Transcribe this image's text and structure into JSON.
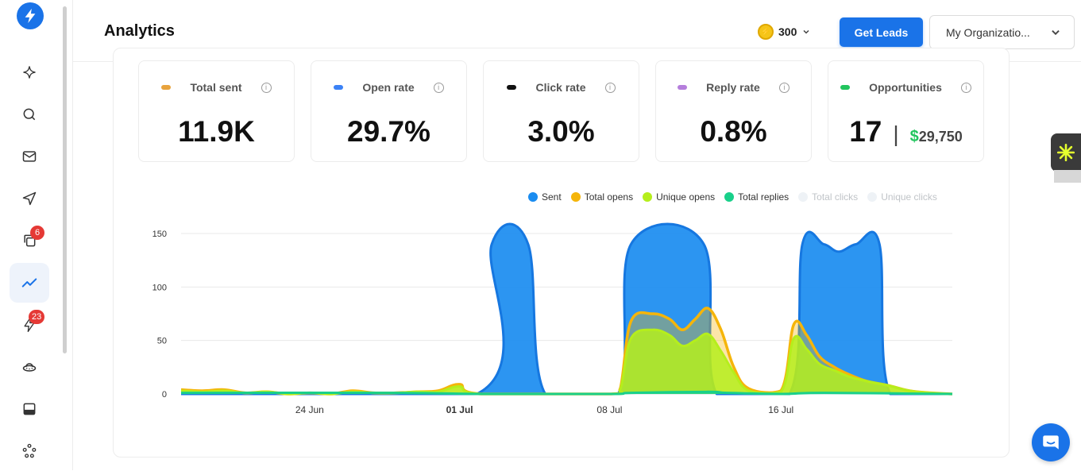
{
  "header": {
    "title": "Analytics",
    "credits": "300",
    "get_leads_label": "Get Leads",
    "org_label": "My Organizatio..."
  },
  "sidebar": {
    "items": [
      {
        "icon": "sparkle-icon"
      },
      {
        "icon": "search-icon"
      },
      {
        "icon": "mail-icon"
      },
      {
        "icon": "send-icon"
      },
      {
        "icon": "copy-icon",
        "badge": "6"
      },
      {
        "icon": "analytics-icon",
        "active": true
      },
      {
        "icon": "bolt-icon",
        "badge": "23"
      },
      {
        "icon": "ufo-icon"
      },
      {
        "icon": "inbox-icon"
      },
      {
        "icon": "network-icon"
      }
    ]
  },
  "stats": [
    {
      "label": "Total sent",
      "value": "11.9K",
      "color": "#e8a33d"
    },
    {
      "label": "Open rate",
      "value": "29.7%",
      "color": "#3b82f6"
    },
    {
      "label": "Click rate",
      "value": "3.0%",
      "color": "#111111"
    },
    {
      "label": "Reply rate",
      "value": "0.8%",
      "color": "#b57edc"
    },
    {
      "label": "Opportunities",
      "value": "17",
      "money_symbol": "$",
      "money": "29,750",
      "color": "#22c55e"
    }
  ],
  "legend": [
    {
      "name": "Sent",
      "color": "#1a8cf0"
    },
    {
      "name": "Total opens",
      "color": "#f5b50a"
    },
    {
      "name": "Unique opens",
      "color": "#b5ee1c"
    },
    {
      "name": "Total replies",
      "color": "#19d08a"
    },
    {
      "name": "Total clicks",
      "color": "#eef2f6",
      "dim": true
    },
    {
      "name": "Unique clicks",
      "color": "#eef2f6",
      "dim": true
    }
  ],
  "chart_data": {
    "type": "area",
    "yticks": [
      "150",
      "100",
      "50",
      "0"
    ],
    "ylim": [
      0,
      150
    ],
    "xtick_labels": [
      "24 Jun",
      "01 Jul",
      "08 Jul",
      "16 Jul"
    ],
    "xtick_bold": [
      false,
      true,
      false,
      false
    ],
    "xtick_days": [
      6,
      13,
      20,
      28
    ],
    "xlim_days": [
      0,
      36
    ],
    "grid": true,
    "legend_position": "top-right",
    "series": [
      {
        "name": "Sent",
        "color": "#1a8cf0",
        "points": [
          [
            0,
            0
          ],
          [
            13.8,
            0
          ],
          [
            14.5,
            140
          ],
          [
            16.2,
            140
          ],
          [
            17,
            0
          ],
          [
            20.4,
            0
          ],
          [
            21,
            140
          ],
          [
            24.4,
            140
          ],
          [
            25,
            0
          ],
          [
            28.4,
            0
          ],
          [
            29,
            140
          ],
          [
            30,
            140
          ],
          [
            30.7,
            133
          ],
          [
            31.5,
            140
          ],
          [
            32.6,
            140
          ],
          [
            33.1,
            0
          ],
          [
            36,
            0
          ]
        ]
      },
      {
        "name": "Total opens",
        "color": "#f5b50a",
        "points": [
          [
            0,
            4
          ],
          [
            1,
            3
          ],
          [
            2,
            4
          ],
          [
            3,
            1
          ],
          [
            4,
            2
          ],
          [
            5,
            0
          ],
          [
            6,
            1
          ],
          [
            7,
            0
          ],
          [
            8,
            3
          ],
          [
            9,
            1
          ],
          [
            10,
            1
          ],
          [
            11,
            2
          ],
          [
            12,
            3
          ],
          [
            13,
            9
          ],
          [
            14,
            0
          ],
          [
            20,
            0
          ],
          [
            20.5,
            5
          ],
          [
            21,
            68
          ],
          [
            22,
            75
          ],
          [
            22.8,
            70
          ],
          [
            23.4,
            60
          ],
          [
            24,
            70
          ],
          [
            24.6,
            80
          ],
          [
            25.2,
            60
          ],
          [
            25.8,
            25
          ],
          [
            26.5,
            5
          ],
          [
            28,
            3
          ],
          [
            28.6,
            65
          ],
          [
            29.2,
            55
          ],
          [
            29.8,
            35
          ],
          [
            30.5,
            25
          ],
          [
            31.2,
            18
          ],
          [
            32,
            12
          ],
          [
            33,
            8
          ],
          [
            34,
            3
          ],
          [
            35,
            1
          ],
          [
            36,
            0
          ]
        ]
      },
      {
        "name": "Unique opens",
        "color": "#b5ee1c",
        "points": [
          [
            0,
            3
          ],
          [
            1,
            2
          ],
          [
            2,
            3
          ],
          [
            3,
            1
          ],
          [
            4,
            2
          ],
          [
            5,
            0
          ],
          [
            6,
            1
          ],
          [
            7,
            0
          ],
          [
            8,
            2
          ],
          [
            9,
            1
          ],
          [
            10,
            1
          ],
          [
            11,
            2
          ],
          [
            12,
            2
          ],
          [
            13,
            7
          ],
          [
            14,
            0
          ],
          [
            20,
            0
          ],
          [
            20.5,
            4
          ],
          [
            21,
            52
          ],
          [
            22,
            60
          ],
          [
            22.8,
            55
          ],
          [
            23.4,
            45
          ],
          [
            24,
            50
          ],
          [
            24.6,
            56
          ],
          [
            25.2,
            40
          ],
          [
            25.8,
            20
          ],
          [
            26.5,
            3
          ],
          [
            28,
            2
          ],
          [
            28.6,
            52
          ],
          [
            29.2,
            42
          ],
          [
            29.8,
            28
          ],
          [
            30.5,
            22
          ],
          [
            31.2,
            16
          ],
          [
            32,
            12
          ],
          [
            33,
            8
          ],
          [
            34,
            3
          ],
          [
            35,
            1
          ],
          [
            36,
            0
          ]
        ]
      },
      {
        "name": "Total replies",
        "color": "#19d08a",
        "points": [
          [
            0,
            1
          ],
          [
            10,
            1
          ],
          [
            14,
            0
          ],
          [
            20,
            0
          ],
          [
            21,
            1
          ],
          [
            24.6,
            2
          ],
          [
            25.5,
            1
          ],
          [
            28,
            0
          ],
          [
            30,
            1
          ],
          [
            36,
            0
          ]
        ]
      }
    ]
  }
}
